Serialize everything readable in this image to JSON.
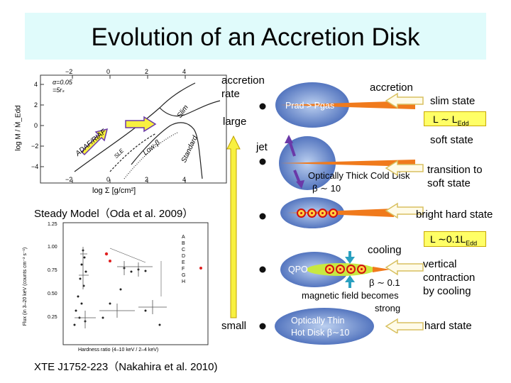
{
  "title": "Evolution of an Accretion Disk",
  "plot1": {
    "legend_line1": "α=0.05",
    "legend_line2": "=5rₛ",
    "xticks_top": [
      "−2",
      "0",
      "2",
      "4"
    ],
    "xticks_bottom": [
      "−2",
      "0",
      "2",
      "4"
    ],
    "yticks": [
      "4",
      "2",
      "0",
      "−2",
      "−4"
    ],
    "ylabel": "log  M / Ṁ_Edd",
    "xlabel": "log Σ [g/cm²]",
    "curve_labels": [
      "Slim",
      "ADAF/RIAF",
      "SLE",
      "Low-β",
      "Standard"
    ]
  },
  "caption1": "Steady Model（Oda et al. 2009）",
  "plot2": {
    "yticks": [
      "1.25",
      "1.00",
      "0.75",
      "0.50",
      "0.25"
    ],
    "ylabel": "Flux (in 3–20 keV (counts cm⁻² s⁻¹)",
    "xlabel": "Hardness ratio (4–10 keV / 2–4 keV)",
    "legend": [
      "A",
      "B",
      "C",
      "D",
      "E",
      "F",
      "G",
      "H"
    ]
  },
  "caption2": "XTE J1752-223（Nakahira et al. 2010)",
  "accretion_rate": {
    "label_top1": "accretion",
    "label_top2": "rate",
    "large": "large",
    "small": "small"
  },
  "jet_label": "jet",
  "disks": [
    {
      "text": "Prad > Pgas"
    },
    {
      "text": "Optically Thick Cold Disk",
      "beta": "β ∼ 10"
    },
    {
      "text": ""
    },
    {
      "text": "QPO",
      "beta": "β ∼ 0.1"
    },
    {
      "text1": "Optically Thin",
      "text2": "Hot Disk  β∼10"
    }
  ],
  "cooling": "cooling",
  "magnetic1": "magnetic field becomes",
  "magnetic2": "strong",
  "right": {
    "accretion": "accretion",
    "slim": "slim state",
    "soft": "soft state",
    "transition1": "transition to",
    "transition2": "soft state",
    "bright_hard": "bright hard state",
    "vertical1": "vertical",
    "vertical2": "contraction",
    "vertical3": "by cooling",
    "hard": "hard state",
    "box1_main": "L ∼ L",
    "box1_sub": "Edd",
    "box2_main": "L ∼0.1L",
    "box2_sub": "Edd"
  },
  "colors": {
    "title_bg": "#e0fbfb",
    "disk_blue": "#3f63b5",
    "disk_orange": "#f07a1c",
    "disk_green": "#c8e840",
    "arrow_yellow": "#f8f040",
    "jet_purple": "#6a39a8",
    "qpo_red": "#d01010"
  }
}
